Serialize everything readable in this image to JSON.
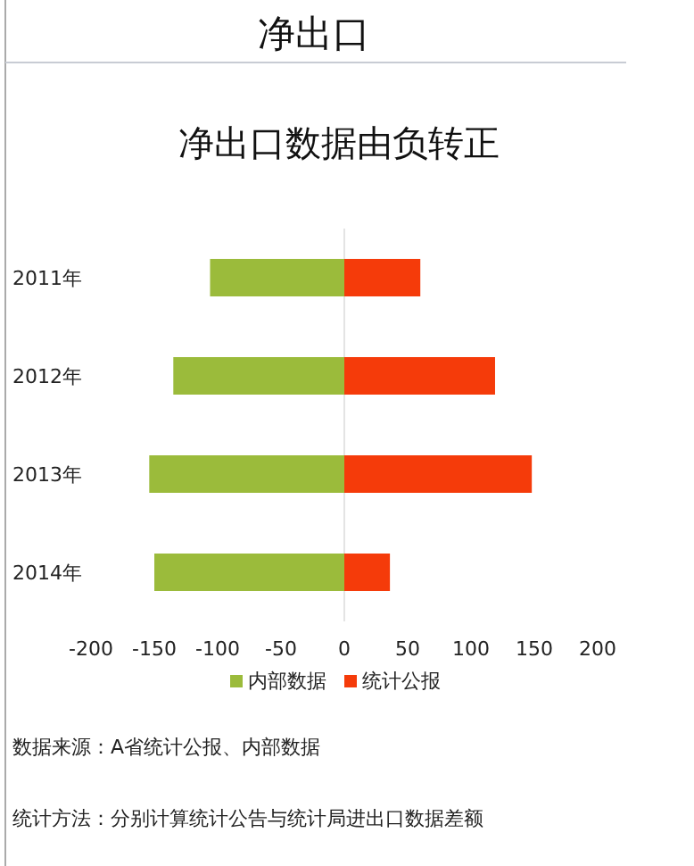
{
  "chart_data": {
    "type": "bar",
    "orientation": "horizontal",
    "stacked": true,
    "title": "净出口",
    "subtitle": "净出口数据由负转正",
    "categories": [
      "2011年",
      "2012年",
      "2013年",
      "2014年"
    ],
    "series": [
      {
        "name": "内部数据",
        "color": "#9bbb3b",
        "values": [
          -106,
          -135,
          -154,
          -150
        ]
      },
      {
        "name": "统计公报",
        "color": "#f53b0a",
        "values": [
          60,
          119,
          148,
          36
        ]
      }
    ],
    "xlim": [
      -200,
      200
    ],
    "xticks": [
      -200,
      -150,
      -100,
      -50,
      0,
      50,
      100,
      150,
      200
    ],
    "ref_lines": [
      {
        "axis": "x",
        "value": 0,
        "color": "#e4e4e4"
      }
    ],
    "legend": "bottom",
    "annotations": [
      "数据来源：A省统计公报、内部数据",
      "统计方法：分别计算统计公告与统计局进出口数据差额"
    ]
  }
}
